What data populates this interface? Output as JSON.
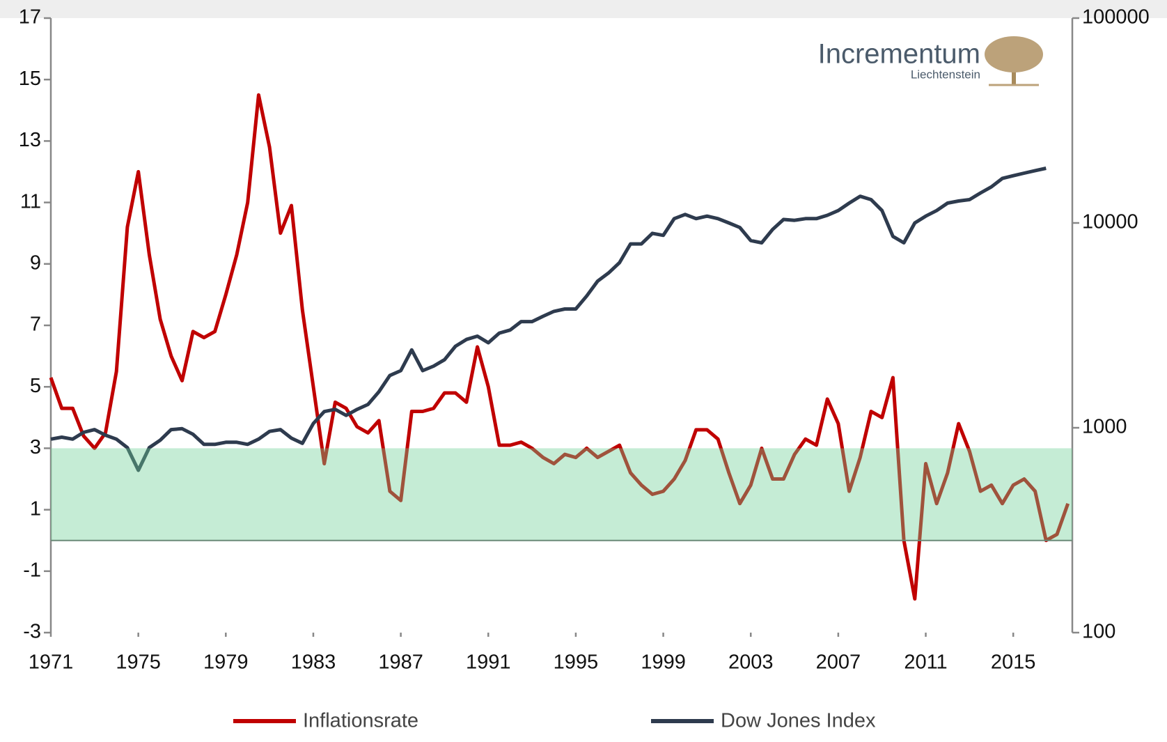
{
  "chart_data": {
    "type": "line",
    "logo": {
      "name": "Incrementum",
      "place": "Liechtenstein"
    },
    "x": [
      1971,
      1971.5,
      1972,
      1972.5,
      1973,
      1973.5,
      1974,
      1974.5,
      1975,
      1975.5,
      1976,
      1976.5,
      1977,
      1977.5,
      1978,
      1978.5,
      1979,
      1979.5,
      1980,
      1980.5,
      1981,
      1981.5,
      1982,
      1982.5,
      1983,
      1983.5,
      1984,
      1984.5,
      1985,
      1985.5,
      1986,
      1986.5,
      1987,
      1987.5,
      1988,
      1988.5,
      1989,
      1989.5,
      1990,
      1990.5,
      1991,
      1991.5,
      1992,
      1992.5,
      1993,
      1993.5,
      1994,
      1994.5,
      1995,
      1995.5,
      1996,
      1996.5,
      1997,
      1997.5,
      1998,
      1998.5,
      1999,
      1999.5,
      2000,
      2000.5,
      2001,
      2001.5,
      2002,
      2002.5,
      2003,
      2003.5,
      2004,
      2004.5,
      2005,
      2005.5,
      2006,
      2006.5,
      2007,
      2007.5,
      2008,
      2008.5,
      2009,
      2009.5,
      2010,
      2010.5,
      2011,
      2011.5,
      2012,
      2012.5,
      2013,
      2013.5,
      2014,
      2014.5,
      2015,
      2015.5,
      2016,
      2016.5,
      2017,
      2017.5
    ],
    "series": [
      {
        "name": "Inflationsrate",
        "color": "#c00000",
        "axis": "y",
        "values": [
          5.3,
          4.3,
          4.3,
          3.4,
          3.0,
          3.5,
          5.5,
          10.2,
          12.0,
          9.3,
          7.2,
          6.0,
          5.2,
          6.8,
          6.6,
          6.8,
          8.0,
          9.3,
          11.0,
          14.5,
          12.8,
          10.0,
          10.9,
          7.5,
          5.0,
          2.5,
          4.5,
          4.3,
          3.7,
          3.5,
          3.9,
          1.6,
          1.3,
          4.2,
          4.2,
          4.3,
          4.8,
          4.8,
          4.5,
          6.3,
          5.0,
          3.1,
          3.1,
          3.2,
          3.0,
          2.7,
          2.5,
          2.8,
          2.7,
          3.0,
          2.7,
          2.9,
          3.1,
          2.2,
          1.8,
          1.5,
          1.6,
          2.0,
          2.6,
          3.6,
          3.6,
          3.3,
          2.2,
          1.2,
          1.8,
          3.0,
          2.0,
          2.0,
          2.8,
          3.3,
          3.1,
          4.6,
          3.8,
          1.6,
          2.7,
          4.2,
          4.0,
          5.3,
          0.0,
          -1.9,
          2.5,
          1.2,
          2.2,
          3.8,
          2.9,
          1.6,
          1.8,
          1.2,
          1.8,
          2.0,
          1.6,
          0.0,
          0.2,
          1.2
        ]
      },
      {
        "name": "Dow Jones Index",
        "color": "#2e3b4e",
        "axis": "y2",
        "values": [
          880,
          900,
          880,
          950,
          980,
          920,
          880,
          800,
          620,
          800,
          870,
          980,
          990,
          930,
          830,
          830,
          850,
          850,
          830,
          880,
          960,
          980,
          890,
          840,
          1050,
          1200,
          1230,
          1150,
          1230,
          1300,
          1500,
          1800,
          1900,
          2400,
          1900,
          2000,
          2150,
          2500,
          2700,
          2800,
          2600,
          2900,
          3000,
          3300,
          3300,
          3500,
          3700,
          3800,
          3800,
          4400,
          5200,
          5700,
          6400,
          7900,
          7900,
          8900,
          8700,
          10500,
          11000,
          10500,
          10800,
          10500,
          10000,
          9500,
          8200,
          8000,
          9300,
          10400,
          10300,
          10500,
          10500,
          10900,
          11500,
          12500,
          13500,
          13000,
          11500,
          8600,
          8000,
          10000,
          10800,
          11500,
          12500,
          12800,
          13000,
          14000,
          15000,
          16500,
          17000,
          17500,
          18000,
          18500,
          null,
          null
        ]
      }
    ],
    "target_band": {
      "from": 0,
      "to": 3,
      "color": "#6fcf97"
    },
    "xlim": [
      1971,
      2017.7
    ],
    "xticks": [
      1971,
      1975,
      1979,
      1983,
      1987,
      1991,
      1995,
      1999,
      2003,
      2007,
      2011,
      2015
    ],
    "ylim": [
      -3,
      17
    ],
    "yticks": [
      -3,
      -1,
      1,
      3,
      5,
      7,
      9,
      11,
      13,
      15,
      17
    ],
    "y2lim": [
      100,
      100000
    ],
    "y2ticks": [
      100,
      1000,
      10000,
      100000
    ],
    "y2scale": "log"
  }
}
